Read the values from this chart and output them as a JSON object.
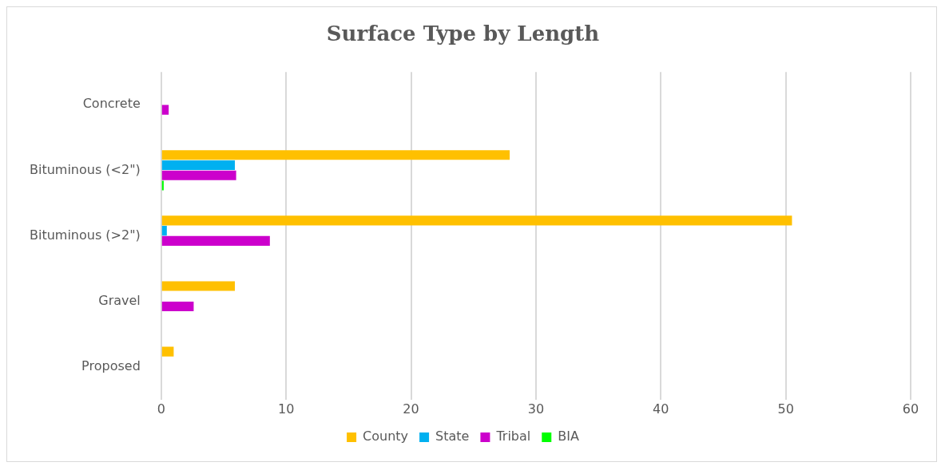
{
  "chart_data": {
    "type": "bar",
    "orientation": "horizontal",
    "title": "Surface Type by Length",
    "categories": [
      "Concrete",
      "Bituminous (<2\")",
      "Bituminous (>2\")",
      "Gravel",
      "Proposed"
    ],
    "series": [
      {
        "name": "County",
        "color": "#ffc000",
        "values": [
          null,
          27.9,
          50.5,
          5.9,
          1.0
        ]
      },
      {
        "name": "State",
        "color": "#00b0f0",
        "values": [
          null,
          5.9,
          0.45,
          null,
          null
        ]
      },
      {
        "name": "Tribal",
        "color": "#cc00cc",
        "values": [
          0.6,
          6.0,
          8.7,
          2.6,
          null
        ]
      },
      {
        "name": "BIA",
        "color": "#00ff00",
        "values": [
          null,
          0.2,
          null,
          null,
          null
        ]
      }
    ],
    "xlim": [
      0,
      60
    ],
    "xticks": [
      0,
      10,
      20,
      30,
      40,
      50,
      60
    ],
    "grid": "x",
    "legend": "bottom"
  }
}
